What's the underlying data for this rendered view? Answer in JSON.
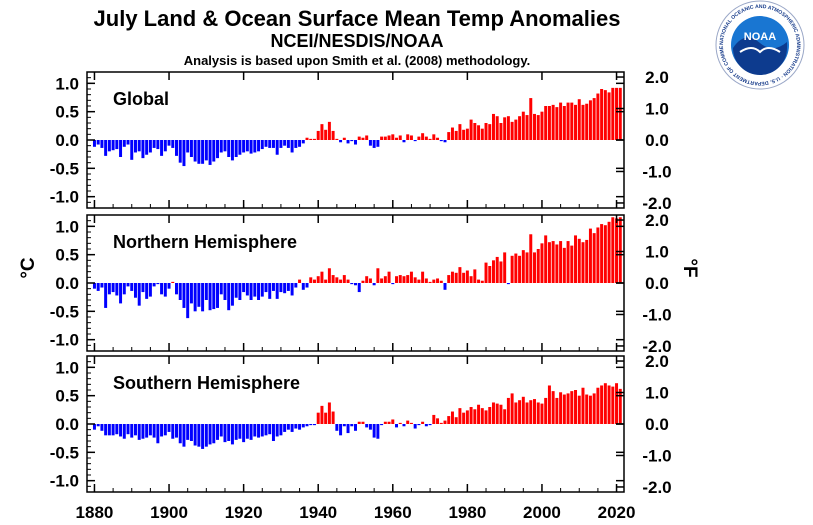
{
  "colors": {
    "positive": "#ff0000",
    "negative": "#0000ff",
    "axis": "#000000",
    "logo_blue": "#1565c0",
    "logo_dark": "#0d3b8e"
  },
  "header": {
    "title": "July Land & Ocean Surface Mean Temp Anomalies",
    "subtitle": "NCEI/NESDIS/NOAA",
    "note": "Analysis is based upon Smith et al. (2008) methodology."
  },
  "logo": {
    "name": "NOAA",
    "ring_text": "NATIONAL OCEANIC AND ATMOSPHERIC ADMINISTRATION · U.S. DEPARTMENT OF COMMERCE"
  },
  "axes": {
    "left_unit": "°C",
    "right_unit": "°F",
    "x_ticks": [
      "1880",
      "1900",
      "1920",
      "1940",
      "1960",
      "1980",
      "2000",
      "2020"
    ],
    "y_ticks_c": [
      "1.0",
      "0.5",
      "0.0",
      "-0.5",
      "-1.0"
    ],
    "y_ticks_f": [
      "2.0",
      "1.0",
      "0.0",
      "-1.0",
      "-2.0"
    ]
  },
  "chart_data": [
    {
      "type": "bar",
      "title": "Global",
      "ylabel": "°C",
      "y2label": "°F",
      "xlim": [
        1878,
        2022
      ],
      "ylim": [
        -1.2,
        1.2
      ],
      "start_year": 1880,
      "values": [
        -0.12,
        -0.08,
        -0.14,
        -0.28,
        -0.2,
        -0.18,
        -0.16,
        -0.3,
        -0.12,
        -0.08,
        -0.35,
        -0.22,
        -0.2,
        -0.32,
        -0.26,
        -0.22,
        -0.14,
        -0.16,
        -0.28,
        -0.2,
        -0.1,
        -0.14,
        -0.28,
        -0.4,
        -0.46,
        -0.22,
        -0.3,
        -0.38,
        -0.42,
        -0.42,
        -0.36,
        -0.44,
        -0.38,
        -0.32,
        -0.22,
        -0.2,
        -0.3,
        -0.36,
        -0.3,
        -0.26,
        -0.22,
        -0.2,
        -0.24,
        -0.22,
        -0.2,
        -0.16,
        -0.12,
        -0.14,
        -0.14,
        -0.26,
        -0.14,
        -0.1,
        -0.14,
        -0.22,
        -0.14,
        -0.12,
        -0.06,
        0.04,
        0.02,
        0.02,
        0.16,
        0.28,
        0.18,
        0.32,
        0.16,
        0.02,
        -0.04,
        0.04,
        -0.06,
        -0.02,
        -0.08,
        0.06,
        0.04,
        0.08,
        -0.1,
        -0.14,
        -0.12,
        0.06,
        0.06,
        0.08,
        0.1,
        0.04,
        0.08,
        -0.04,
        0.1,
        0.08,
        -0.02,
        0.06,
        0.12,
        0.06,
        0.02,
        0.1,
        0.04,
        -0.02,
        -0.04,
        0.14,
        0.22,
        0.16,
        0.28,
        0.18,
        0.2,
        0.36,
        0.3,
        0.26,
        0.2,
        0.3,
        0.28,
        0.46,
        0.42,
        0.3,
        0.4,
        0.42,
        0.32,
        0.36,
        0.42,
        0.5,
        0.44,
        0.74,
        0.46,
        0.44,
        0.5,
        0.6,
        0.6,
        0.62,
        0.58,
        0.66,
        0.6,
        0.66,
        0.66,
        0.62,
        0.72,
        0.62,
        0.64,
        0.7,
        0.74,
        0.82,
        0.9,
        0.88,
        0.84,
        0.92,
        0.92,
        0.92
      ]
    },
    {
      "type": "bar",
      "title": "Northern Hemisphere",
      "ylabel": "°C",
      "y2label": "°F",
      "xlim": [
        1878,
        2022
      ],
      "ylim": [
        -1.2,
        1.2
      ],
      "start_year": 1880,
      "values": [
        -0.1,
        -0.14,
        -0.08,
        -0.44,
        -0.2,
        -0.16,
        -0.22,
        -0.36,
        -0.2,
        -0.06,
        -0.14,
        -0.26,
        -0.4,
        -0.16,
        -0.28,
        -0.24,
        -0.06,
        -0.02,
        -0.2,
        -0.24,
        -0.1,
        0.02,
        -0.2,
        -0.3,
        -0.44,
        -0.62,
        -0.36,
        -0.5,
        -0.42,
        -0.5,
        -0.3,
        -0.48,
        -0.46,
        -0.44,
        -0.2,
        -0.3,
        -0.48,
        -0.4,
        -0.26,
        -0.3,
        -0.16,
        -0.22,
        -0.3,
        -0.24,
        -0.3,
        -0.24,
        -0.16,
        -0.28,
        -0.14,
        -0.28,
        -0.16,
        -0.18,
        -0.14,
        -0.22,
        -0.08,
        0.06,
        -0.12,
        -0.08,
        0.1,
        0.06,
        0.12,
        0.2,
        0.06,
        0.26,
        0.14,
        0.1,
        0.06,
        0.14,
        0.06,
        -0.02,
        -0.04,
        -0.16,
        0.04,
        0.12,
        0.08,
        -0.04,
        0.26,
        0.08,
        0.12,
        0.2,
        -0.02,
        0.12,
        0.14,
        0.12,
        0.14,
        0.2,
        0.1,
        0.06,
        0.2,
        0.08,
        0.02,
        0.06,
        0.08,
        0.04,
        -0.12,
        0.14,
        0.2,
        0.18,
        0.28,
        0.18,
        0.22,
        0.12,
        0.24,
        0.06,
        0.04,
        0.36,
        0.3,
        0.4,
        0.46,
        0.38,
        0.54,
        -0.02,
        0.48,
        0.52,
        0.48,
        0.58,
        0.54,
        0.86,
        0.54,
        0.6,
        0.7,
        0.84,
        0.72,
        0.74,
        0.68,
        0.74,
        0.62,
        0.74,
        0.66,
        0.84,
        0.78,
        0.72,
        0.76,
        0.96,
        0.88,
        0.98,
        1.04,
        1.02,
        1.08,
        1.16,
        1.14,
        1.16
      ]
    },
    {
      "type": "bar",
      "title": "Southern Hemisphere",
      "ylabel": "°C",
      "y2label": "°F",
      "xlim": [
        1878,
        2022
      ],
      "ylim": [
        -1.2,
        1.2
      ],
      "start_year": 1880,
      "values": [
        -0.1,
        -0.04,
        -0.12,
        -0.2,
        -0.2,
        -0.2,
        -0.18,
        -0.22,
        -0.26,
        -0.18,
        -0.24,
        -0.2,
        -0.28,
        -0.26,
        -0.24,
        -0.2,
        -0.24,
        -0.34,
        -0.22,
        -0.2,
        -0.14,
        -0.26,
        -0.24,
        -0.34,
        -0.4,
        -0.28,
        -0.3,
        -0.38,
        -0.4,
        -0.44,
        -0.4,
        -0.36,
        -0.34,
        -0.28,
        -0.22,
        -0.32,
        -0.3,
        -0.36,
        -0.28,
        -0.26,
        -0.32,
        -0.26,
        -0.28,
        -0.22,
        -0.24,
        -0.22,
        -0.2,
        -0.18,
        -0.3,
        -0.22,
        -0.2,
        -0.14,
        -0.1,
        -0.14,
        -0.08,
        -0.1,
        -0.06,
        -0.04,
        -0.02,
        -0.02,
        0.2,
        0.32,
        0.2,
        0.38,
        0.22,
        -0.12,
        -0.2,
        -0.04,
        -0.16,
        -0.04,
        -0.12,
        0.04,
        0.04,
        -0.06,
        -0.1,
        -0.24,
        -0.26,
        -0.02,
        0.04,
        0.04,
        0.08,
        -0.06,
        0.02,
        -0.04,
        0.06,
        0.02,
        -0.08,
        -0.02,
        0.04,
        -0.04,
        -0.02,
        0.16,
        0.1,
        0.02,
        0.06,
        0.14,
        0.22,
        0.12,
        0.28,
        0.2,
        0.24,
        0.3,
        0.26,
        0.34,
        0.28,
        0.24,
        0.3,
        0.38,
        0.36,
        0.34,
        0.26,
        0.46,
        0.54,
        0.38,
        0.42,
        0.48,
        0.38,
        0.42,
        0.44,
        0.38,
        0.36,
        0.46,
        0.68,
        0.58,
        0.46,
        0.56,
        0.52,
        0.54,
        0.58,
        0.6,
        0.5,
        0.64,
        0.52,
        0.5,
        0.54,
        0.64,
        0.68,
        0.72,
        0.68,
        0.66,
        0.72,
        0.62
      ]
    }
  ]
}
